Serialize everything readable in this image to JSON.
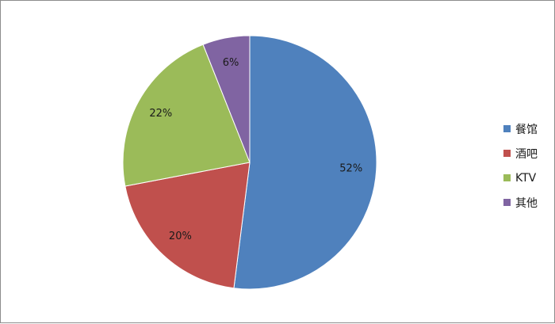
{
  "chart_data": {
    "type": "pie",
    "title": "",
    "slices": [
      {
        "label": "餐馆",
        "value": 52,
        "display": "52%",
        "color": "#4f81bd"
      },
      {
        "label": "酒吧",
        "value": 20,
        "display": "20%",
        "color": "#c0504d"
      },
      {
        "label": "KTV",
        "value": 22,
        "display": "22%",
        "color": "#9bbb59"
      },
      {
        "label": "其他",
        "value": 6,
        "display": "6%",
        "color": "#8064a2"
      }
    ],
    "start_angle_deg": 0,
    "direction": "clockwise",
    "legend_position": "right"
  }
}
